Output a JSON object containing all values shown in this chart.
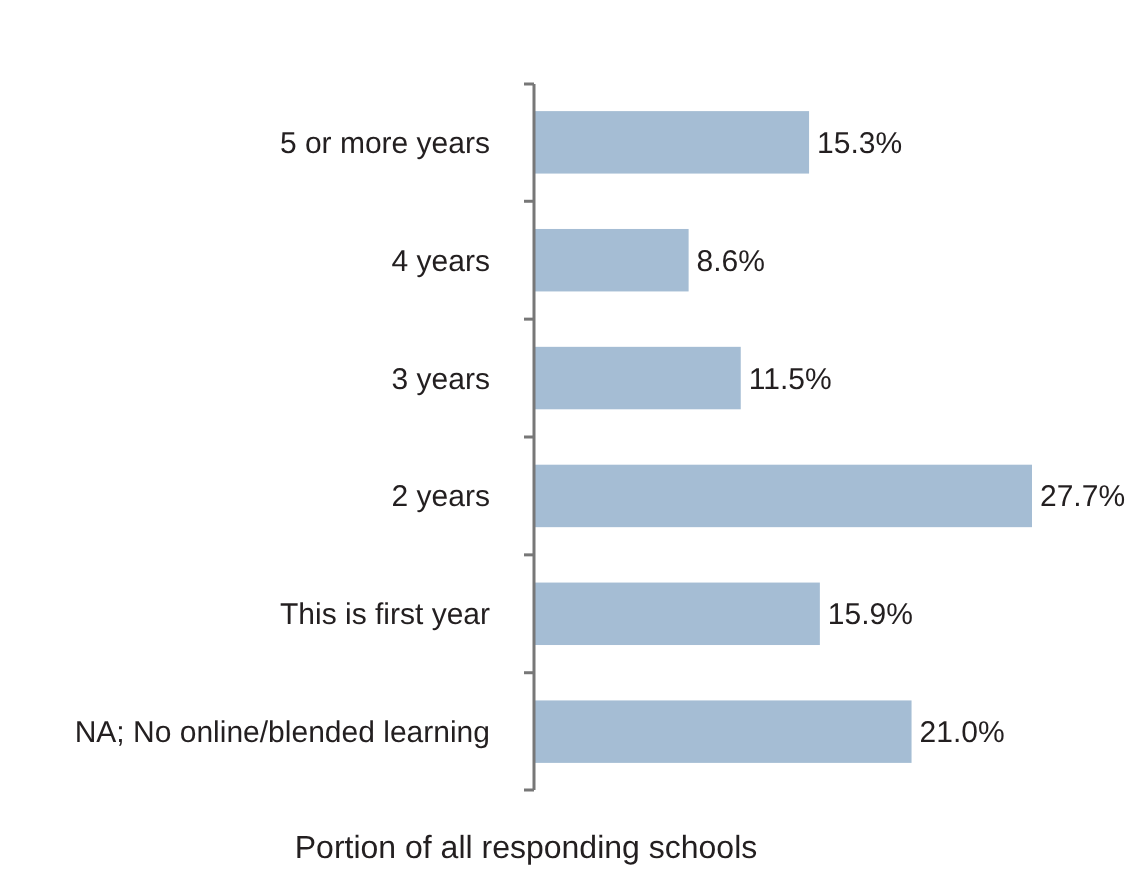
{
  "chart_data": {
    "type": "bar",
    "orientation": "horizontal",
    "xlabel": "Portion of all responding schools",
    "categories": [
      "5 or more years",
      "4 years",
      "3 years",
      "2 years",
      "This is first year",
      "NA; No online/blended learning"
    ],
    "values": [
      15.3,
      8.6,
      11.5,
      27.7,
      15.9,
      21.0
    ],
    "value_labels": [
      "15.3%",
      "8.6%",
      "11.5%",
      "27.7%",
      "15.9%",
      "21.0%"
    ],
    "color": "#a5bdd4"
  }
}
